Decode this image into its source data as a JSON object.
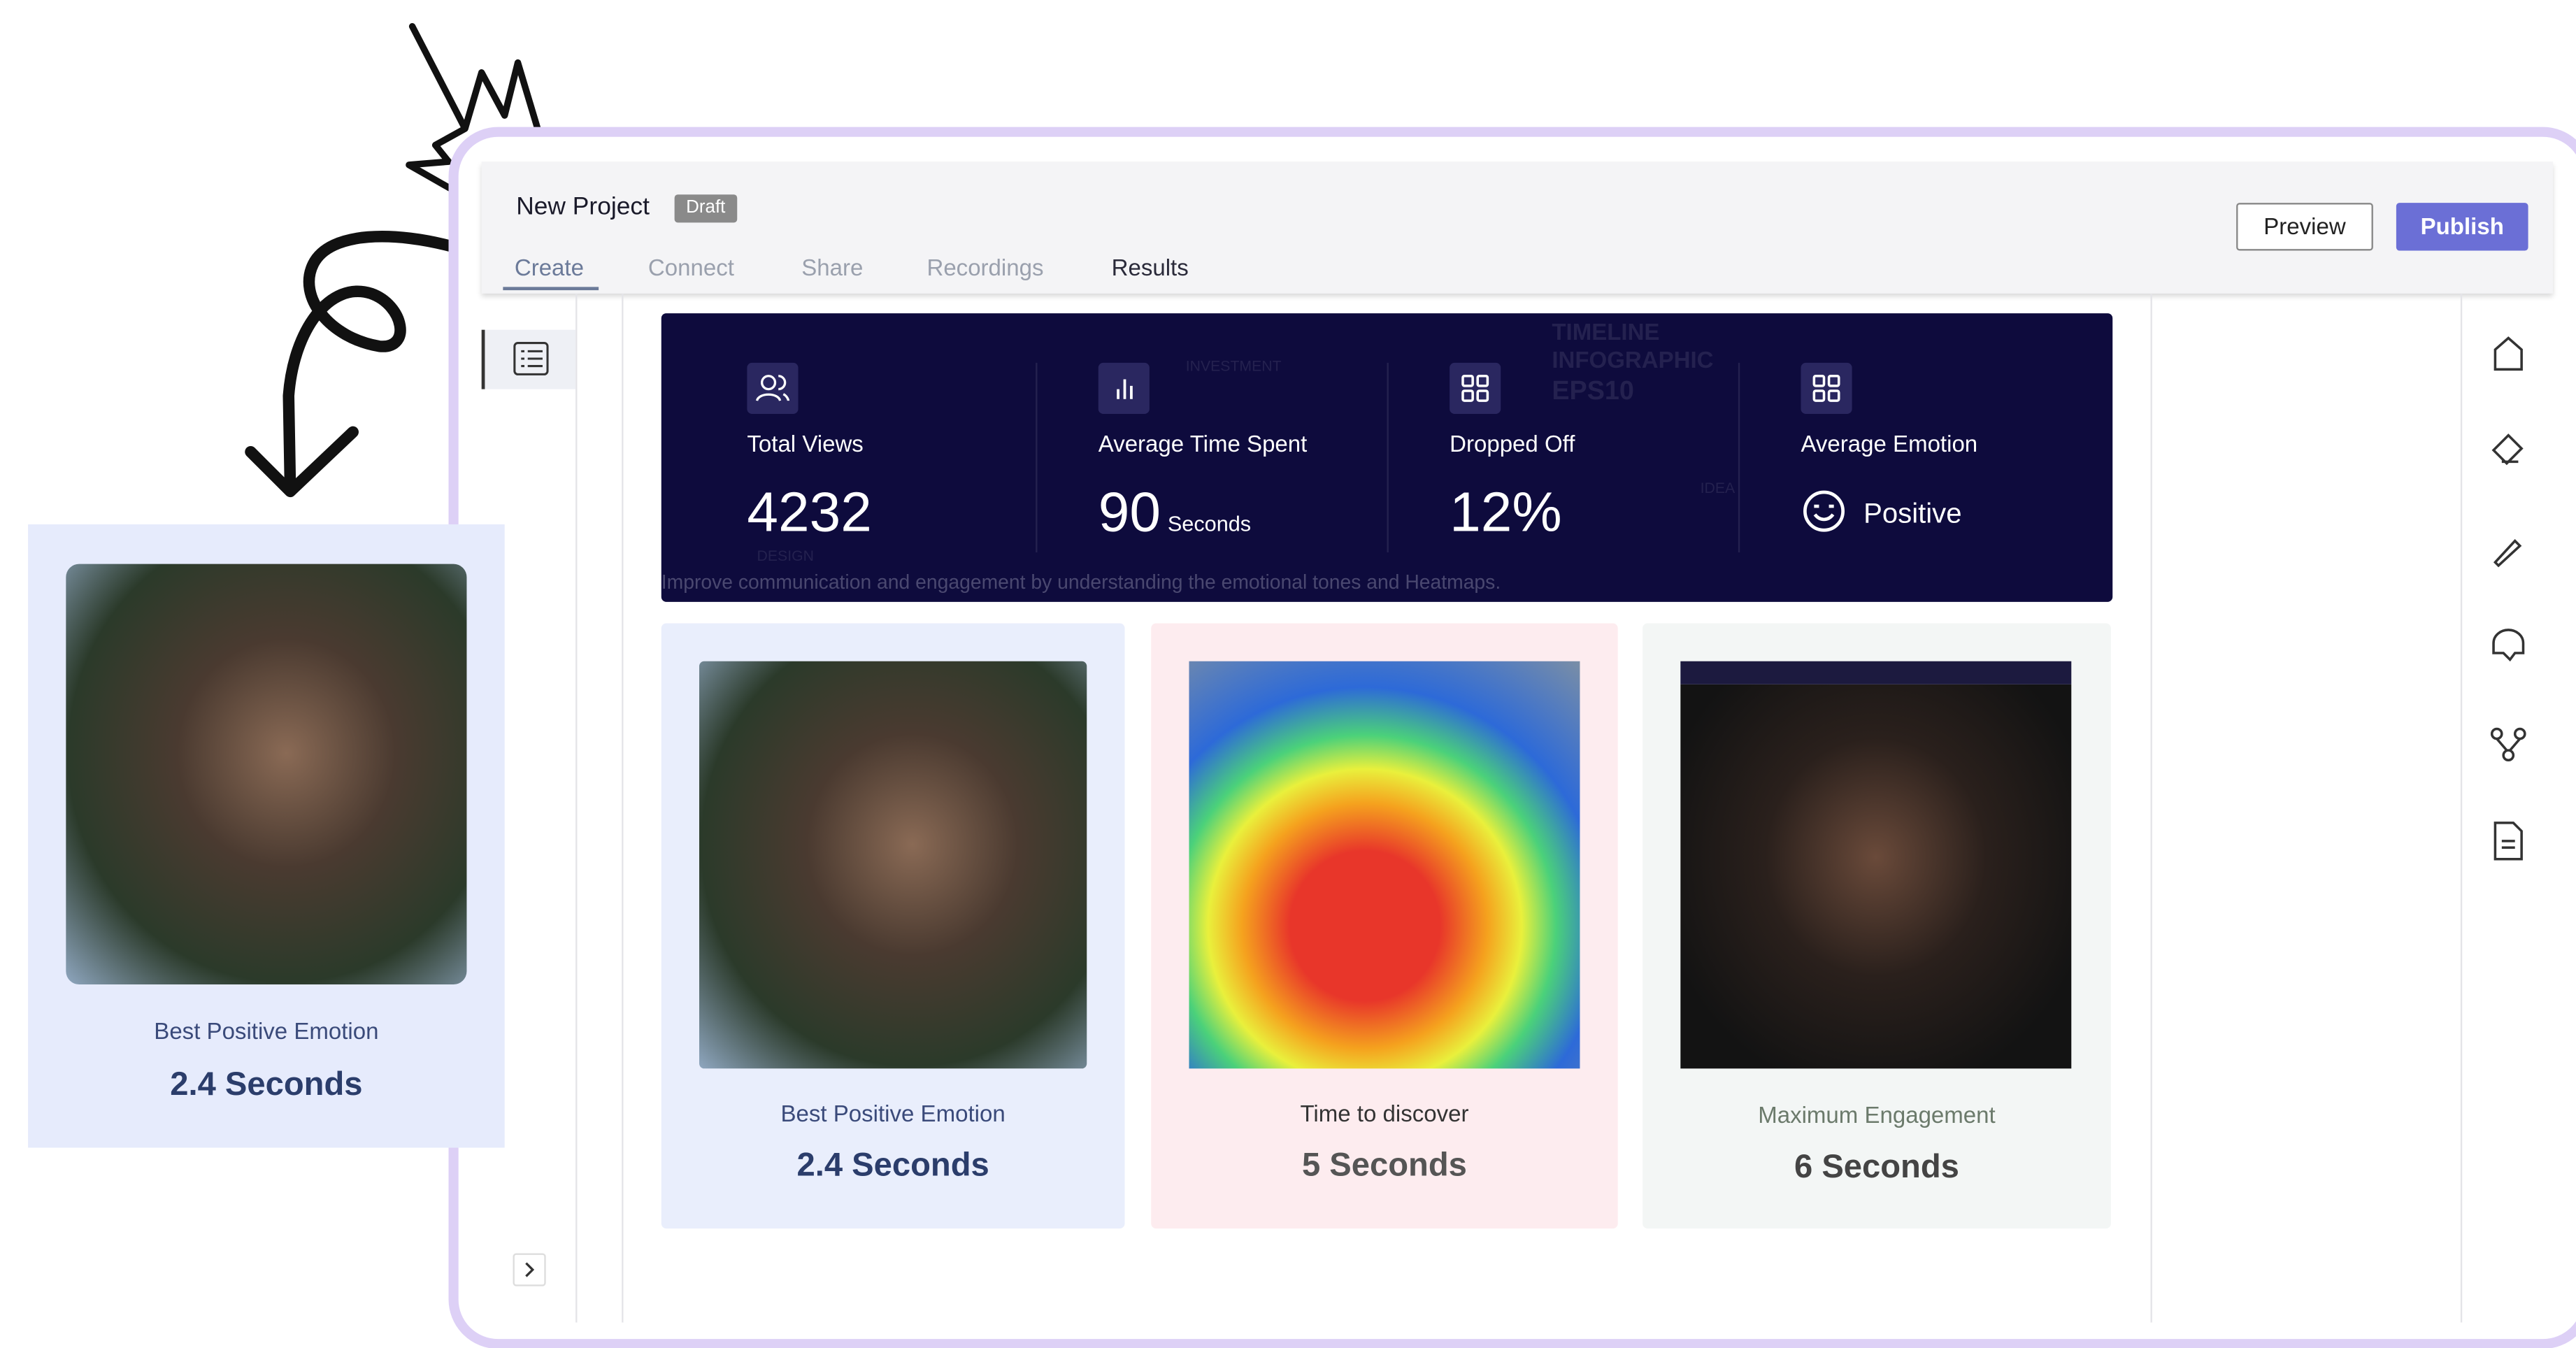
{
  "header": {
    "title": "New Project",
    "badge": "Draft",
    "tabs": [
      "Create",
      "Connect",
      "Share",
      "Recordings",
      "Results"
    ],
    "buttons": [
      "Preview",
      "Publish"
    ]
  },
  "stats": [
    {
      "label": "Total Views",
      "value": "4232"
    },
    {
      "label": "Average Time Spent",
      "value": "90",
      "unit": "Seconds"
    },
    {
      "label": "Dropped Off",
      "value": "12%"
    },
    {
      "label": "Average Emotion",
      "value": "Positive"
    }
  ],
  "banner_caption": "Improve communication and engagement by understanding the emotional tones and Heatmaps.",
  "banner_watermark": [
    "TIMELINE",
    "INFOGRAPHIC",
    "EPS10",
    "INVESTMENT",
    "DESIGN",
    "IDEA"
  ],
  "cards": [
    {
      "label": "Best Positive Emotion",
      "value": "2.4 Seconds"
    },
    {
      "label": "Time to discover",
      "value": "5 Seconds"
    },
    {
      "label": "Maximum Engagement",
      "value": "6 Seconds"
    }
  ],
  "floating_card": {
    "label": "Best Positive Emotion",
    "value": "2.4 Seconds"
  }
}
